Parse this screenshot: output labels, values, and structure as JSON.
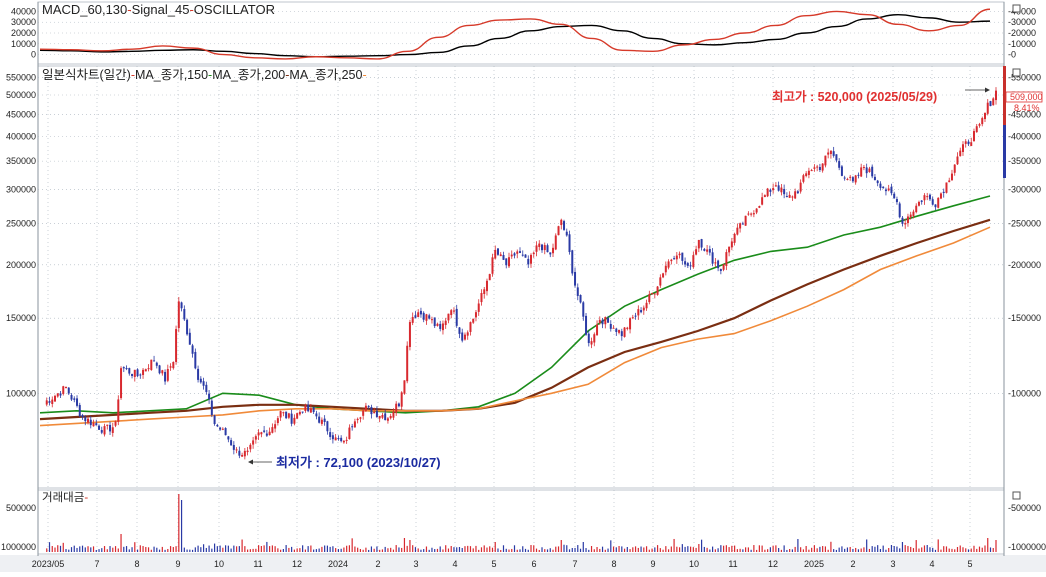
{
  "macd_panel": {
    "title": "MACD_60,130",
    "signal_label": "Signal_45",
    "osc_label": "OSCILLATOR",
    "sep": "-",
    "yticks": [
      "40000",
      "30000",
      "20000",
      "10000",
      "0"
    ]
  },
  "price_panel": {
    "title": "일본식차트(일간)",
    "ma_labels": [
      "MA_종가,150",
      "MA_종가,200",
      "MA_종가,250"
    ],
    "sep": "-",
    "high_label": "최고가 : 520,000 (2025/05/29)",
    "low_label": "최저가 : 72,100 (2023/10/27)",
    "last_price_badge": "509,000",
    "change_badge": "8.41%",
    "yticks": [
      "550000",
      "500000",
      "450000",
      "400000",
      "350000",
      "300000",
      "250000",
      "200000",
      "150000",
      "100000"
    ]
  },
  "volume_panel": {
    "title": "거래대금",
    "sep": "-",
    "yticks": [
      "500000",
      "1000000"
    ]
  },
  "x_axis": {
    "labels": [
      "2023/05",
      "7",
      "8",
      "9",
      "10",
      "11",
      "12",
      "2024",
      "2",
      "3",
      "4",
      "5",
      "6",
      "7",
      "8",
      "9",
      "10",
      "11",
      "12",
      "2025",
      "2",
      "3",
      "4",
      "5"
    ]
  },
  "colors": {
    "up": "#d8292f",
    "down": "#2a3aa5",
    "ma150": "#1a8c1a",
    "ma200": "#7a2e12",
    "ma250": "#f08a3a",
    "macd": "#000000",
    "signal": "#d63a2a",
    "grid": "#a9b3bd",
    "high_text": "#e03030",
    "low_text": "#1a2aa0"
  },
  "chart_data": {
    "type": "candlestick",
    "series": [
      {
        "name": "일본식차트(일간)",
        "x": [
          "2023/05",
          "2023/06",
          "2023/07",
          "2023/08",
          "2023/08",
          "2023/09",
          "2023/09",
          "2023/10",
          "2023/10",
          "2023/10",
          "2023/11",
          "2023/12",
          "2024/01",
          "2024/02",
          "2024/03",
          "2024/03",
          "2024/04",
          "2024/05",
          "2024/06",
          "2024/07",
          "2024/07",
          "2024/08",
          "2024/09",
          "2024/10",
          "2024/11",
          "2024/12",
          "2025/01",
          "2025/02",
          "2025/03",
          "2025/04",
          "2025/04",
          "2025/05",
          "2025/05"
        ],
        "values": [
          95000,
          105000,
          83000,
          80000,
          115000,
          110000,
          165000,
          100000,
          80000,
          72100,
          88000,
          90000,
          72000,
          88000,
          92000,
          155000,
          150000,
          140000,
          220000,
          200000,
          260000,
          150000,
          135000,
          160000,
          215000,
          195000,
          270000,
          310000,
          370000,
          300000,
          250000,
          280000,
          509000
        ]
      },
      {
        "name": "MA_종가,150",
        "values": [
          90000,
          91000,
          90000,
          91000,
          92000,
          100000,
          99000,
          94000,
          92000,
          91000,
          90000,
          91000,
          93000,
          100000,
          115000,
          140000,
          160000,
          175000,
          190000,
          205000,
          215000,
          220000,
          235000,
          245000,
          260000,
          275000,
          290000
        ]
      },
      {
        "name": "MA_종가,200",
        "values": [
          87000,
          88000,
          89000,
          90000,
          91000,
          93000,
          94000,
          94000,
          93000,
          92000,
          91000,
          91000,
          92000,
          95000,
          103000,
          115000,
          125000,
          132000,
          140000,
          150000,
          165000,
          180000,
          195000,
          210000,
          225000,
          240000,
          255000
        ]
      },
      {
        "name": "MA_종가,250",
        "values": [
          84000,
          85000,
          86000,
          87000,
          88000,
          89000,
          91000,
          92000,
          92000,
          91000,
          91000,
          91000,
          92000,
          96000,
          100000,
          105000,
          118000,
          128000,
          134000,
          138000,
          148000,
          160000,
          175000,
          195000,
          210000,
          225000,
          245000
        ]
      }
    ],
    "macd": {
      "MACD_60,130": [
        4000,
        3500,
        2500,
        3000,
        4000,
        4500,
        3000,
        1000,
        -1000,
        -2000,
        -1500,
        -1000,
        0,
        2000,
        8000,
        15000,
        22000,
        26000,
        27000,
        22000,
        15000,
        10000,
        9000,
        11000,
        14000,
        20000,
        26000,
        33000,
        37000,
        34000,
        30000,
        31000
      ],
      "Signal_45": [
        5000,
        4500,
        3500,
        5000,
        8000,
        6000,
        0,
        -3000,
        -4000,
        -2000,
        -3000,
        -4000,
        3000,
        16000,
        27000,
        32000,
        33000,
        28000,
        15000,
        4000,
        3000,
        9000,
        14000,
        20000,
        27000,
        36000,
        40000,
        37000,
        28000,
        22000,
        27000,
        42000
      ]
    },
    "ylim": [
      60000,
      560000
    ],
    "yscale": "log",
    "annotations": [
      "최고가 : 520,000 (2025/05/29)",
      "최저가 : 72,100 (2023/10/27)"
    ]
  }
}
